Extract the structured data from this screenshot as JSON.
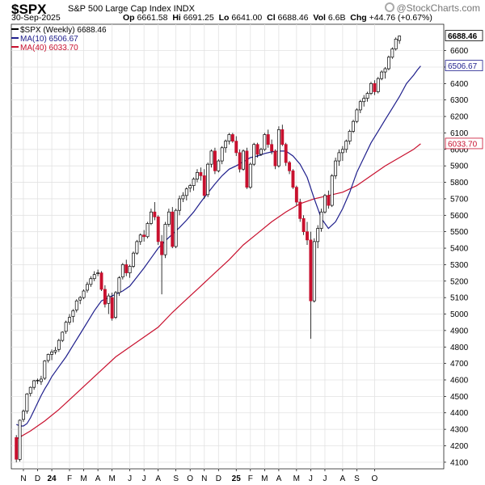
{
  "header": {
    "symbol": "$SPX",
    "description": "S&P 500 Large Cap Index INDX",
    "date": "30-Sep-2025",
    "open_label": "Op",
    "open": "6661.58",
    "high_label": "Hi",
    "high": "6691.25",
    "low_label": "Lo",
    "low": "6641.00",
    "close_label": "Cl",
    "close": "6688.46",
    "volume_label": "Vol",
    "volume": "6.6B",
    "change_label": "Chg",
    "change": "+44.76 (+0.67%)",
    "logo": "@StockCharts.com"
  },
  "legend": [
    {
      "text": "$SPX (Weekly) 6688.46",
      "color": "#000000"
    },
    {
      "text": "MA(10) 6506.67",
      "color": "#1f1f8c"
    },
    {
      "text": "MA(40) 6033.70",
      "color": "#c8102e"
    }
  ],
  "chart_data": {
    "type": "candlestick",
    "title": "S&P 500 Large Cap Index",
    "ylim": [
      4060,
      6760
    ],
    "y_ticks": [
      4100,
      4200,
      4300,
      4400,
      4500,
      4600,
      4700,
      4800,
      4900,
      5000,
      5100,
      5200,
      5300,
      5400,
      5500,
      5600,
      5700,
      5800,
      5900,
      6000,
      6100,
      6200,
      6300,
      6400,
      6500,
      6600
    ],
    "x_labels": [
      "N",
      "D",
      "24",
      "F",
      "M",
      "A",
      "M",
      "J",
      "J",
      "A",
      "S",
      "O",
      "N",
      "D",
      "25",
      "F",
      "M",
      "A",
      "M",
      "J",
      "J",
      "A",
      "S",
      "O"
    ],
    "x_label_weeks": [
      2,
      6,
      10,
      15,
      19,
      23,
      27,
      32,
      36,
      40,
      45,
      49,
      53,
      57,
      62,
      66,
      70,
      74,
      79,
      83,
      87,
      92,
      96,
      101
    ],
    "last_price": "6688.46",
    "tags": [
      {
        "text": "6688.46",
        "value": 6688.46,
        "color": "#000000",
        "bg": "#ffffff"
      },
      {
        "text": "6506.67",
        "value": 6506.67,
        "color": "#1f1f8c",
        "bg": "#ffffff"
      },
      {
        "text": "6033.70",
        "value": 6033.7,
        "color": "#c8102e",
        "bg": "#ffffff"
      }
    ],
    "up_color": "#ffffff",
    "down_color": "#c8102e",
    "grid": true,
    "series": [
      {
        "name": "$SPX (Weekly)",
        "ohlc": [
          [
            4250,
            4265,
            4100,
            4118
          ],
          [
            4117,
            4360,
            4105,
            4355
          ],
          [
            4360,
            4420,
            4345,
            4410
          ],
          [
            4410,
            4520,
            4395,
            4515
          ],
          [
            4518,
            4560,
            4500,
            4555
          ],
          [
            4555,
            4600,
            4540,
            4595
          ],
          [
            4598,
            4608,
            4575,
            4598
          ],
          [
            4590,
            4625,
            4570,
            4605
          ],
          [
            4610,
            4720,
            4600,
            4715
          ],
          [
            4718,
            4760,
            4705,
            4755
          ],
          [
            4755,
            4785,
            4720,
            4770
          ],
          [
            4770,
            4800,
            4755,
            4780
          ],
          [
            4785,
            4850,
            4770,
            4840
          ],
          [
            4840,
            4895,
            4830,
            4890
          ],
          [
            4895,
            4960,
            4880,
            4950
          ],
          [
            4950,
            5000,
            4935,
            4980
          ],
          [
            4985,
            5030,
            4950,
            5020
          ],
          [
            5025,
            5090,
            5010,
            5080
          ],
          [
            5085,
            5110,
            5060,
            5100
          ],
          [
            5100,
            5150,
            5090,
            5140
          ],
          [
            5145,
            5195,
            5130,
            5180
          ],
          [
            5180,
            5230,
            5165,
            5215
          ],
          [
            5215,
            5260,
            5200,
            5240
          ],
          [
            5245,
            5270,
            5230,
            5250
          ],
          [
            5250,
            5260,
            5140,
            5150
          ],
          [
            5150,
            5175,
            5040,
            5060
          ],
          [
            5065,
            5125,
            5000,
            5110
          ],
          [
            5100,
            5130,
            4960,
            4975
          ],
          [
            4980,
            5140,
            4970,
            5130
          ],
          [
            5130,
            5230,
            5110,
            5220
          ],
          [
            5225,
            5310,
            5210,
            5300
          ],
          [
            5300,
            5330,
            5230,
            5250
          ],
          [
            5250,
            5300,
            5220,
            5290
          ],
          [
            5290,
            5380,
            5280,
            5370
          ],
          [
            5370,
            5450,
            5360,
            5440
          ],
          [
            5440,
            5490,
            5420,
            5480
          ],
          [
            5480,
            5510,
            5440,
            5470
          ],
          [
            5470,
            5560,
            5460,
            5550
          ],
          [
            5550,
            5640,
            5540,
            5620
          ],
          [
            5620,
            5680,
            5570,
            5590
          ],
          [
            5590,
            5600,
            5420,
            5440
          ],
          [
            5440,
            5480,
            5120,
            5360
          ],
          [
            5360,
            5560,
            5340,
            5545
          ],
          [
            5545,
            5640,
            5530,
            5620
          ],
          [
            5620,
            5650,
            5400,
            5410
          ],
          [
            5410,
            5640,
            5400,
            5630
          ],
          [
            5630,
            5720,
            5600,
            5700
          ],
          [
            5700,
            5740,
            5680,
            5720
          ],
          [
            5720,
            5770,
            5690,
            5760
          ],
          [
            5765,
            5790,
            5740,
            5780
          ],
          [
            5780,
            5830,
            5750,
            5820
          ],
          [
            5820,
            5880,
            5800,
            5860
          ],
          [
            5860,
            5890,
            5810,
            5840
          ],
          [
            5840,
            5880,
            5700,
            5720
          ],
          [
            5725,
            5920,
            5710,
            5910
          ],
          [
            5910,
            6000,
            5890,
            5990
          ],
          [
            5990,
            6010,
            5850,
            5870
          ],
          [
            5870,
            5940,
            5860,
            5930
          ],
          [
            5930,
            6020,
            5910,
            6010
          ],
          [
            6010,
            6060,
            5980,
            6050
          ],
          [
            6050,
            6100,
            6030,
            6090
          ],
          [
            6090,
            6100,
            6040,
            6050
          ],
          [
            6050,
            6080,
            5960,
            5980
          ],
          [
            5980,
            6000,
            5860,
            5880
          ],
          [
            5880,
            6000,
            5870,
            5990
          ],
          [
            5990,
            6010,
            5760,
            5770
          ],
          [
            5770,
            5920,
            5760,
            5910
          ],
          [
            5910,
            6040,
            5900,
            6030
          ],
          [
            6030,
            6040,
            5950,
            5970
          ],
          [
            5970,
            6010,
            5960,
            6000
          ],
          [
            6000,
            6100,
            5990,
            6090
          ],
          [
            6090,
            6120,
            6010,
            6030
          ],
          [
            6030,
            6060,
            5970,
            5990
          ],
          [
            5990,
            6000,
            5880,
            5900
          ],
          [
            5900,
            6140,
            5890,
            6120
          ],
          [
            6120,
            6150,
            6020,
            6030
          ],
          [
            6030,
            6040,
            5900,
            5920
          ],
          [
            5920,
            5930,
            5850,
            5870
          ],
          [
            5870,
            5880,
            5760,
            5770
          ],
          [
            5770,
            5780,
            5660,
            5680
          ],
          [
            5680,
            5700,
            5560,
            5580
          ],
          [
            5580,
            5600,
            5480,
            5500
          ],
          [
            5500,
            5560,
            5420,
            5450
          ],
          [
            5450,
            5500,
            4850,
            5080
          ],
          [
            5080,
            5460,
            5070,
            5440
          ],
          [
            5440,
            5540,
            5400,
            5520
          ],
          [
            5520,
            5640,
            5500,
            5620
          ],
          [
            5620,
            5730,
            5610,
            5720
          ],
          [
            5720,
            5750,
            5640,
            5660
          ],
          [
            5660,
            5850,
            5650,
            5840
          ],
          [
            5840,
            5950,
            5820,
            5930
          ],
          [
            5930,
            6000,
            5900,
            5980
          ],
          [
            5980,
            6020,
            5930,
            6000
          ],
          [
            6000,
            6060,
            5980,
            6050
          ],
          [
            6050,
            6120,
            6030,
            6110
          ],
          [
            6110,
            6180,
            6100,
            6170
          ],
          [
            6170,
            6250,
            6160,
            6240
          ],
          [
            6240,
            6300,
            6220,
            6290
          ],
          [
            6290,
            6330,
            6260,
            6310
          ],
          [
            6310,
            6350,
            6290,
            6340
          ],
          [
            6340,
            6410,
            6330,
            6400
          ],
          [
            6400,
            6420,
            6330,
            6350
          ],
          [
            6350,
            6440,
            6340,
            6430
          ],
          [
            6430,
            6480,
            6420,
            6470
          ],
          [
            6470,
            6500,
            6430,
            6490
          ],
          [
            6490,
            6570,
            6480,
            6560
          ],
          [
            6560,
            6620,
            6550,
            6610
          ],
          [
            6610,
            6680,
            6600,
            6670
          ],
          [
            6661.58,
            6691.25,
            6641,
            6688.46
          ]
        ]
      },
      {
        "name": "MA(10)",
        "values": [
          [
            0,
            4330
          ],
          [
            1,
            4320
          ],
          [
            2,
            4320
          ],
          [
            3,
            4335
          ],
          [
            4,
            4370
          ],
          [
            5,
            4415
          ],
          [
            6,
            4460
          ],
          [
            7,
            4505
          ],
          [
            8,
            4545
          ],
          [
            9,
            4580
          ],
          [
            10,
            4620
          ],
          [
            12,
            4680
          ],
          [
            14,
            4740
          ],
          [
            16,
            4810
          ],
          [
            18,
            4880
          ],
          [
            20,
            4950
          ],
          [
            22,
            5020
          ],
          [
            24,
            5080
          ],
          [
            26,
            5100
          ],
          [
            28,
            5120
          ],
          [
            30,
            5140
          ],
          [
            32,
            5170
          ],
          [
            34,
            5225
          ],
          [
            36,
            5280
          ],
          [
            38,
            5340
          ],
          [
            40,
            5400
          ],
          [
            42,
            5445
          ],
          [
            44,
            5485
          ],
          [
            46,
            5525
          ],
          [
            48,
            5570
          ],
          [
            50,
            5620
          ],
          [
            52,
            5680
          ],
          [
            54,
            5735
          ],
          [
            56,
            5790
          ],
          [
            58,
            5840
          ],
          [
            60,
            5880
          ],
          [
            62,
            5900
          ],
          [
            64,
            5925
          ],
          [
            66,
            5950
          ],
          [
            68,
            5960
          ],
          [
            70,
            5975
          ],
          [
            72,
            5985
          ],
          [
            74,
            5990
          ],
          [
            76,
            5990
          ],
          [
            78,
            5960
          ],
          [
            80,
            5910
          ],
          [
            82,
            5830
          ],
          [
            84,
            5700
          ],
          [
            86,
            5580
          ],
          [
            88,
            5520
          ],
          [
            90,
            5560
          ],
          [
            92,
            5640
          ],
          [
            94,
            5740
          ],
          [
            96,
            5860
          ],
          [
            98,
            5950
          ],
          [
            100,
            6040
          ],
          [
            102,
            6110
          ],
          [
            104,
            6180
          ],
          [
            106,
            6250
          ],
          [
            108,
            6320
          ],
          [
            110,
            6400
          ],
          [
            112,
            6450
          ],
          [
            113,
            6480
          ],
          [
            114,
            6506.67
          ]
        ]
      },
      {
        "name": "MA(40)",
        "values": [
          [
            0,
            4240
          ],
          [
            4,
            4290
          ],
          [
            8,
            4350
          ],
          [
            12,
            4420
          ],
          [
            16,
            4500
          ],
          [
            20,
            4580
          ],
          [
            24,
            4660
          ],
          [
            28,
            4740
          ],
          [
            32,
            4800
          ],
          [
            36,
            4860
          ],
          [
            40,
            4920
          ],
          [
            44,
            5010
          ],
          [
            48,
            5090
          ],
          [
            52,
            5170
          ],
          [
            56,
            5250
          ],
          [
            60,
            5330
          ],
          [
            64,
            5420
          ],
          [
            68,
            5490
          ],
          [
            72,
            5560
          ],
          [
            76,
            5620
          ],
          [
            80,
            5670
          ],
          [
            84,
            5700
          ],
          [
            88,
            5720
          ],
          [
            92,
            5740
          ],
          [
            96,
            5780
          ],
          [
            100,
            5840
          ],
          [
            104,
            5900
          ],
          [
            108,
            5950
          ],
          [
            112,
            6000
          ],
          [
            114,
            6033.7
          ]
        ]
      }
    ]
  }
}
